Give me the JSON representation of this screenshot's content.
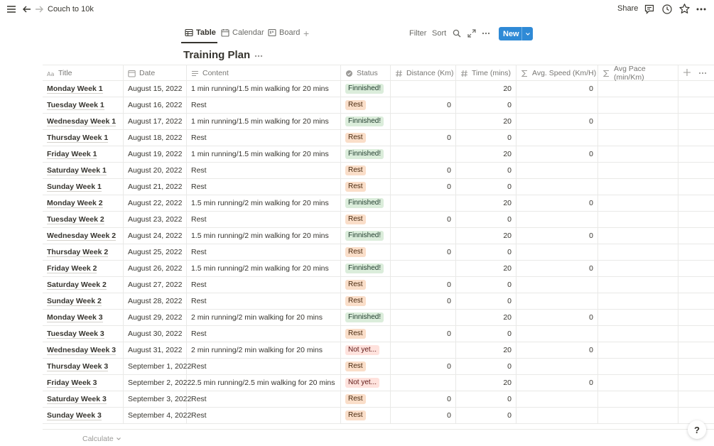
{
  "topbar": {
    "page_title": "Couch to 10k",
    "share_label": "Share"
  },
  "views": {
    "tabs": [
      {
        "label": "Table"
      },
      {
        "label": "Calendar"
      },
      {
        "label": "Board"
      }
    ],
    "filter_label": "Filter",
    "sort_label": "Sort",
    "new_label": "New"
  },
  "database": {
    "title": "Training Plan",
    "columns": {
      "title": "Title",
      "date": "Date",
      "content": "Content",
      "status": "Status",
      "distance": "Distance (Km)",
      "time": "Time (mins)",
      "speed": "Avg. Speed (Km/H)",
      "pace": "Avg Pace (min/Km)"
    },
    "rows": [
      {
        "title": "Monday Week 1",
        "date": "August 15, 2022",
        "content": "1 min running/1.5 min walking for 20 mins",
        "status": "Finnished!",
        "distance": "",
        "time": "20",
        "speed": "0"
      },
      {
        "title": "Tuesday Week 1",
        "date": "August 16, 2022",
        "content": "Rest",
        "status": "Rest",
        "distance": "0",
        "time": "0",
        "speed": ""
      },
      {
        "title": "Wednesday Week 1",
        "date": "August 17, 2022",
        "content": "1 min running/1.5 min walking for 20 mins",
        "status": "Finnished!",
        "distance": "",
        "time": "20",
        "speed": "0"
      },
      {
        "title": "Thursday Week 1",
        "date": "August 18, 2022",
        "content": "Rest",
        "status": "Rest",
        "distance": "0",
        "time": "0",
        "speed": ""
      },
      {
        "title": "Friday Week 1",
        "date": "August 19, 2022",
        "content": "1 min running/1.5 min walking for 20 mins",
        "status": "Finnished!",
        "distance": "",
        "time": "20",
        "speed": "0"
      },
      {
        "title": "Saturday Week 1",
        "date": "August 20, 2022",
        "content": "Rest",
        "status": "Rest",
        "distance": "0",
        "time": "0",
        "speed": ""
      },
      {
        "title": "Sunday Week 1",
        "date": "August 21, 2022",
        "content": "Rest",
        "status": "Rest",
        "distance": "0",
        "time": "0",
        "speed": ""
      },
      {
        "title": "Monday Week 2",
        "date": "August 22, 2022",
        "content": "1.5 min running/2 min walking for 20 mins",
        "status": "Finnished!",
        "distance": "",
        "time": "20",
        "speed": "0"
      },
      {
        "title": "Tuesday Week 2",
        "date": "August 23, 2022",
        "content": "Rest",
        "status": "Rest",
        "distance": "0",
        "time": "0",
        "speed": ""
      },
      {
        "title": "Wednesday Week 2",
        "date": "August 24, 2022",
        "content": "1.5 min running/2 min walking for 20 mins",
        "status": "Finnished!",
        "distance": "",
        "time": "20",
        "speed": "0"
      },
      {
        "title": "Thursday Week 2",
        "date": "August 25, 2022",
        "content": "Rest",
        "status": "Rest",
        "distance": "0",
        "time": "0",
        "speed": ""
      },
      {
        "title": "Friday Week 2",
        "date": "August 26, 2022",
        "content": "1.5 min running/2 min walking for 20 mins",
        "status": "Finnished!",
        "distance": "",
        "time": "20",
        "speed": "0"
      },
      {
        "title": "Saturday Week 2",
        "date": "August 27, 2022",
        "content": "Rest",
        "status": "Rest",
        "distance": "0",
        "time": "0",
        "speed": ""
      },
      {
        "title": "Sunday Week 2",
        "date": "August 28, 2022",
        "content": "Rest",
        "status": "Rest",
        "distance": "0",
        "time": "0",
        "speed": ""
      },
      {
        "title": "Monday Week 3",
        "date": "August 29, 2022",
        "content": "2 min running/2 min walking for 20 mins",
        "status": "Finnished!",
        "distance": "",
        "time": "20",
        "speed": "0"
      },
      {
        "title": "Tuesday Week 3",
        "date": "August 30, 2022",
        "content": "Rest",
        "status": "Rest",
        "distance": "0",
        "time": "0",
        "speed": ""
      },
      {
        "title": "Wednesday Week 3",
        "date": "August 31, 2022",
        "content": "2 min running/2 min walking for 20 mins",
        "status": "Not yet...",
        "distance": "",
        "time": "20",
        "speed": "0"
      },
      {
        "title": "Thursday Week 3",
        "date": "September 1, 2022",
        "content": "Rest",
        "status": "Rest",
        "distance": "0",
        "time": "0",
        "speed": ""
      },
      {
        "title": "Friday Week 3",
        "date": "September 2, 2022",
        "content": "2.5 min running/2.5 min walking for 20 mins",
        "status": "Not yet...",
        "distance": "",
        "time": "20",
        "speed": "0"
      },
      {
        "title": "Saturday Week 3",
        "date": "September 3, 2022",
        "content": "Rest",
        "status": "Rest",
        "distance": "0",
        "time": "0",
        "speed": ""
      },
      {
        "title": "Sunday Week 3",
        "date": "September 4, 2022",
        "content": "Rest",
        "status": "Rest",
        "distance": "0",
        "time": "0",
        "speed": ""
      }
    ],
    "status_colors": {
      "Finnished!": "green",
      "Rest": "orange",
      "Not yet...": "red"
    }
  },
  "footer": {
    "calculate_label": "Calculate",
    "help_label": "?"
  }
}
